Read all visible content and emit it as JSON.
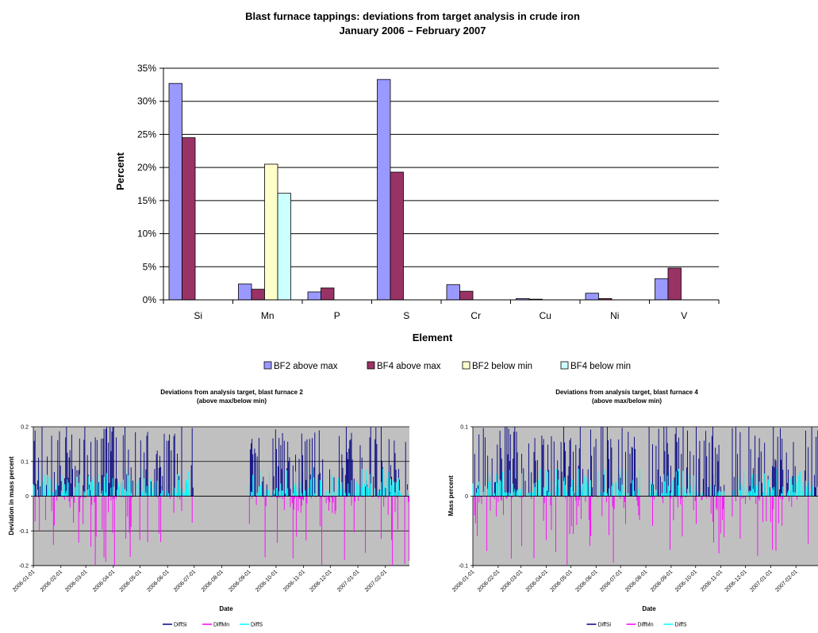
{
  "page": {
    "background": "#ffffff"
  },
  "chart_data": [
    {
      "type": "bar",
      "title": "Blast furnace tappings: deviations from target analysis in crude iron",
      "subtitle": "January 2006 – February 2007",
      "xlabel": "Element",
      "ylabel": "Percent",
      "ylim": [
        0,
        35
      ],
      "yticks": [
        "0%",
        "5%",
        "10%",
        "15%",
        "20%",
        "25%",
        "30%",
        "35%"
      ],
      "grid": true,
      "legend_position": "bottom",
      "categories": [
        "Si",
        "Mn",
        "P",
        "S",
        "Cr",
        "Cu",
        "Ni",
        "V"
      ],
      "series": [
        {
          "name": "BF2 above max",
          "color": "#9999ff",
          "values": [
            32.7,
            2.4,
            1.2,
            33.3,
            2.3,
            0.2,
            1.0,
            3.2
          ]
        },
        {
          "name": "BF4 above max",
          "color": "#993366",
          "values": [
            24.5,
            1.6,
            1.8,
            19.3,
            1.3,
            0.1,
            0.2,
            4.8
          ]
        },
        {
          "name": "BF2 below min",
          "color": "#ffffcc",
          "values": [
            0,
            20.5,
            0,
            0,
            0,
            0,
            0,
            0
          ]
        },
        {
          "name": "BF4 below min",
          "color": "#ccffff",
          "values": [
            0,
            16.1,
            0,
            0,
            0,
            0,
            0,
            0
          ]
        }
      ]
    },
    {
      "type": "line",
      "title": "Deviations from analysis target, blast furnace 2",
      "subtitle": "(above max/below min)",
      "xlabel": "Date",
      "ylabel": "Deviation in mass percent",
      "ylim": [
        -0.2,
        0.2
      ],
      "yticks": [
        "-0.2",
        "-0.1",
        "0",
        "0.1",
        "0.2"
      ],
      "x_start": "2006-01-01",
      "x_end": "2007-02-28",
      "xticks": [
        "2006-01-01",
        "2006-02-01",
        "2006-03-01",
        "2006-04-01",
        "2006-05-01",
        "2006-06-01",
        "2006-07-01",
        "2006-08-01",
        "2006-09-01",
        "2006-10-01",
        "2006-11-01",
        "2006-12-01",
        "2007-01-01",
        "2007-02-01"
      ],
      "plot_background": "#c0c0c0",
      "grid": true,
      "legend_position": "bottom",
      "active_periods": [
        [
          "2006-01-01",
          "2006-06-30"
        ],
        [
          "2006-09-01",
          "2007-02-28"
        ]
      ],
      "series": [
        {
          "name": "DiffSi",
          "color": "#000080"
        },
        {
          "name": "DiffMn",
          "color": "#ff00ff"
        },
        {
          "name": "DiffS",
          "color": "#00ffff"
        }
      ]
    },
    {
      "type": "line",
      "title": "Deviations from analysis target, blast furnace 4",
      "subtitle": "(above max/below min)",
      "xlabel": "Date",
      "ylabel": "Mass percent",
      "ylim": [
        -0.1,
        0.1
      ],
      "yticks": [
        "-0.1",
        "0",
        "0.1"
      ],
      "x_start": "2006-01-01",
      "x_end": "2007-02-28",
      "xticks": [
        "2006-01-01",
        "2006-02-01",
        "2006-03-01",
        "2006-04-01",
        "2006-05-01",
        "2006-06-01",
        "2006-07-01",
        "2006-08-01",
        "2006-09-01",
        "2006-10-01",
        "2006-11-01",
        "2006-12-01",
        "2007-01-01",
        "2007-02-01"
      ],
      "plot_background": "#c0c0c0",
      "grid": true,
      "legend_position": "bottom",
      "active_periods": [
        [
          "2006-01-01",
          "2006-07-25"
        ],
        [
          "2006-08-05",
          "2006-11-05"
        ],
        [
          "2006-11-15",
          "2007-02-28"
        ]
      ],
      "series": [
        {
          "name": "DiffSi",
          "color": "#000080"
        },
        {
          "name": "DiffMn",
          "color": "#ff00ff"
        },
        {
          "name": "DiffS",
          "color": "#00ffff"
        }
      ]
    }
  ]
}
